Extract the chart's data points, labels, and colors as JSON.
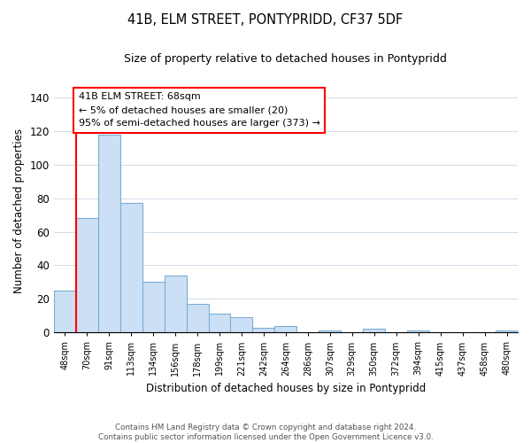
{
  "title": "41B, ELM STREET, PONTYPRIDD, CF37 5DF",
  "subtitle": "Size of property relative to detached houses in Pontypridd",
  "xlabel": "Distribution of detached houses by size in Pontypridd",
  "ylabel": "Number of detached properties",
  "bar_labels": [
    "48sqm",
    "70sqm",
    "91sqm",
    "113sqm",
    "134sqm",
    "156sqm",
    "178sqm",
    "199sqm",
    "221sqm",
    "242sqm",
    "264sqm",
    "286sqm",
    "307sqm",
    "329sqm",
    "350sqm",
    "372sqm",
    "394sqm",
    "415sqm",
    "437sqm",
    "458sqm",
    "480sqm"
  ],
  "bar_values": [
    25,
    68,
    118,
    77,
    30,
    34,
    17,
    11,
    9,
    3,
    4,
    0,
    1,
    0,
    2,
    0,
    1,
    0,
    0,
    0,
    1
  ],
  "bar_color": "#cce0f5",
  "bar_edge_color": "#7aadd4",
  "annotation_line1": "41B ELM STREET: 68sqm",
  "annotation_line2": "← 5% of detached houses are smaller (20)",
  "annotation_line3": "95% of semi-detached houses are larger (373) →",
  "ylim": [
    0,
    145
  ],
  "yticks": [
    0,
    20,
    40,
    60,
    80,
    100,
    120,
    140
  ],
  "footer_line1": "Contains HM Land Registry data © Crown copyright and database right 2024.",
  "footer_line2": "Contains public sector information licensed under the Open Government Licence v3.0.",
  "background_color": "#ffffff",
  "grid_color": "#d0dce8"
}
